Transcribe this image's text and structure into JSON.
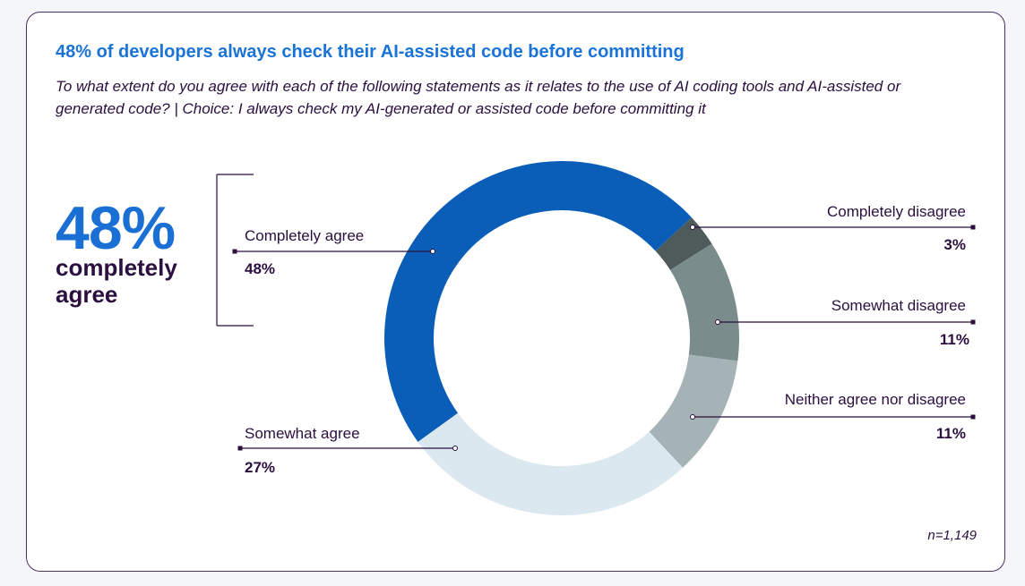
{
  "title": "48% of developers always check their AI-assisted code before committing",
  "subtitle": "To what extent do you agree with each of the following statements as it relates to the use of AI coding tools and AI-assisted or generated code? | Choice: I always check my AI-generated or assisted code before committing it",
  "highlight": {
    "value": "48%",
    "label": "completely agree"
  },
  "sample": "n=1,149",
  "chart_data": {
    "type": "pie",
    "donut": true,
    "categories": [
      "Completely disagree",
      "Somewhat disagree",
      "Neither agree nor disagree",
      "Somewhat agree",
      "Completely agree"
    ],
    "values": [
      3,
      11,
      11,
      27,
      48
    ],
    "labels": [
      "3%",
      "11%",
      "11%",
      "27%",
      "48%"
    ],
    "colors": [
      "#4f5b5a",
      "#7a8c8c",
      "#a5b2b6",
      "#dce8ef",
      "#0a5eb8"
    ]
  }
}
